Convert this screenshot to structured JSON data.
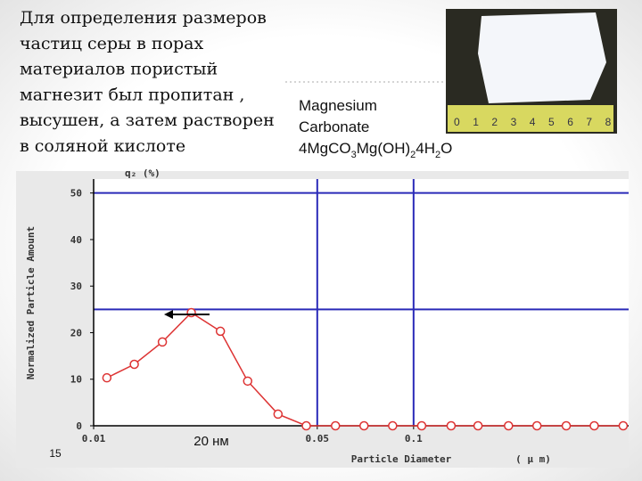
{
  "slide": {
    "text_lines": [
      "Для определения размеров",
      "частиц серы в порах",
      "материалов пористый",
      "магнезит был пропитан ,",
      "высушен, а затем растворен",
      "в соляной кислоте"
    ],
    "caption_lines": [
      "Magnesium",
      "Carbonate"
    ],
    "formula": [
      "4MgCO",
      "3",
      "Mg(OH)",
      "2",
      "4H",
      "2",
      "O"
    ],
    "ruler_labels": [
      "0",
      "1",
      "2",
      "3",
      "4",
      "5",
      "6",
      "7",
      "8"
    ],
    "annotation": "20 нм",
    "page_number": "15"
  },
  "chart_data": {
    "type": "line",
    "y_unit": "q₂ (%)",
    "ylabel": "Normalized Particle Amount",
    "xlabel": "Particle Diameter",
    "x_unit": "( μ m)",
    "log_x": true,
    "xlim": [
      0.01,
      0.47
    ],
    "xticks": [
      0.01,
      0.05,
      0.1
    ],
    "ylim": [
      0,
      53
    ],
    "yticks": [
      0,
      10,
      20,
      30,
      40,
      50
    ],
    "reference_x": [
      0.05,
      0.1
    ],
    "reference_y": [
      25,
      50
    ],
    "reference_color": "#2a2ab8",
    "series": [
      {
        "name": "q2",
        "color": "#dd3333",
        "x": [
          0.011,
          0.0134,
          0.0164,
          0.0202,
          0.0249,
          0.0303,
          0.0377,
          0.0462,
          0.057,
          0.07,
          0.086,
          0.106,
          0.131,
          0.159,
          0.198,
          0.243,
          0.3,
          0.367,
          0.452
        ],
        "values": [
          10.3,
          13.2,
          18,
          24.3,
          20.3,
          9.6,
          2.5,
          0,
          0,
          0,
          0,
          0,
          0,
          0,
          0,
          0,
          0,
          0,
          0
        ]
      }
    ]
  }
}
